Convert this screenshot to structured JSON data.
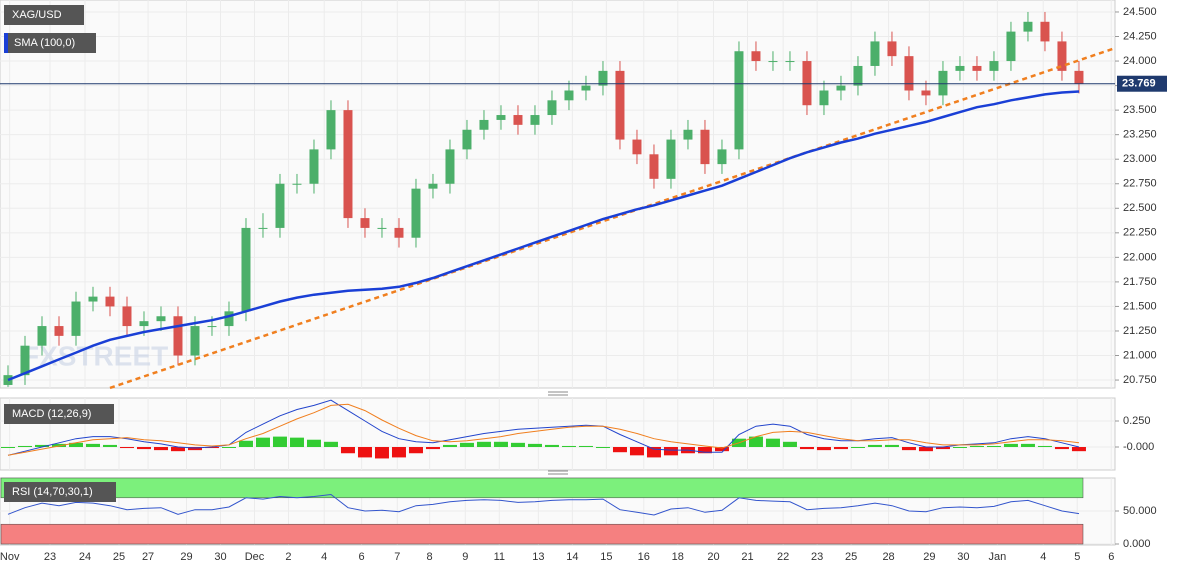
{
  "chart_data": [
    {
      "type": "candlestick",
      "title": "XAG/USD",
      "watermark": "FXSTREET",
      "up_color": "#4caf6a",
      "down_color": "#d9534f",
      "open": [
        20.7,
        20.8,
        21.1,
        21.3,
        21.2,
        21.55,
        21.6,
        21.5,
        21.3,
        21.35,
        21.4,
        21.0,
        21.3,
        21.3,
        21.45,
        22.3,
        22.3,
        22.75,
        22.75,
        23.1,
        23.5,
        22.4,
        22.3,
        22.3,
        22.2,
        22.7,
        22.75,
        23.1,
        23.3,
        23.4,
        23.45,
        23.35,
        23.45,
        23.6,
        23.7,
        23.75,
        23.9,
        23.2,
        23.05,
        22.8,
        23.2,
        23.3,
        22.95,
        23.1,
        24.1,
        24.0,
        24.0,
        24.0,
        23.55,
        23.7,
        23.75,
        23.95,
        24.2,
        24.05,
        23.7,
        23.65,
        23.9,
        23.95,
        23.9,
        24.0,
        24.3,
        24.4,
        24.2,
        23.9
      ],
      "high": [
        20.9,
        21.2,
        21.4,
        21.4,
        21.65,
        21.7,
        21.7,
        21.6,
        21.45,
        21.5,
        21.5,
        21.4,
        21.4,
        21.55,
        22.4,
        22.45,
        22.85,
        22.85,
        23.2,
        23.6,
        23.6,
        22.5,
        22.4,
        22.4,
        22.8,
        22.85,
        23.2,
        23.4,
        23.5,
        23.55,
        23.55,
        23.55,
        23.7,
        23.8,
        23.85,
        24.0,
        24.0,
        23.3,
        23.15,
        23.3,
        23.4,
        23.4,
        23.2,
        24.2,
        24.2,
        24.1,
        24.1,
        24.1,
        23.8,
        23.85,
        24.05,
        24.3,
        24.3,
        24.15,
        23.8,
        24.0,
        24.05,
        24.05,
        24.1,
        24.4,
        24.5,
        24.5,
        24.3,
        24.0
      ],
      "low": [
        20.68,
        20.7,
        21.0,
        21.1,
        21.1,
        21.45,
        21.4,
        21.2,
        21.2,
        21.25,
        20.9,
        20.9,
        21.2,
        21.2,
        21.35,
        22.2,
        22.2,
        22.65,
        22.65,
        23.0,
        22.3,
        22.2,
        22.2,
        22.1,
        22.1,
        22.6,
        22.65,
        23.0,
        23.2,
        23.3,
        23.25,
        23.25,
        23.35,
        23.5,
        23.6,
        23.65,
        23.1,
        22.95,
        22.7,
        22.7,
        23.1,
        22.85,
        22.85,
        23.0,
        23.9,
        23.9,
        23.9,
        23.45,
        23.45,
        23.6,
        23.65,
        23.85,
        23.95,
        23.6,
        23.55,
        23.55,
        23.8,
        23.8,
        23.8,
        23.9,
        24.2,
        24.1,
        23.8,
        23.67
      ],
      "close": [
        20.8,
        21.1,
        21.3,
        21.2,
        21.55,
        21.6,
        21.5,
        21.3,
        21.35,
        21.4,
        21.0,
        21.3,
        21.3,
        21.45,
        22.3,
        22.3,
        22.75,
        22.75,
        23.1,
        23.5,
        22.4,
        22.3,
        22.3,
        22.2,
        22.7,
        22.75,
        23.1,
        23.3,
        23.4,
        23.45,
        23.35,
        23.45,
        23.6,
        23.7,
        23.75,
        23.9,
        23.2,
        23.05,
        22.8,
        23.2,
        23.3,
        22.95,
        23.1,
        24.1,
        24.0,
        24.0,
        24.0,
        23.55,
        23.7,
        23.75,
        23.95,
        24.2,
        24.05,
        23.7,
        23.65,
        23.9,
        23.95,
        23.9,
        24.0,
        24.3,
        24.4,
        24.2,
        23.9,
        23.77
      ],
      "sma": {
        "name": "SMA (100,0)",
        "color": "#1a3fd6",
        "values": [
          20.75,
          20.82,
          20.89,
          20.96,
          21.03,
          21.1,
          21.16,
          21.2,
          21.24,
          21.27,
          21.3,
          21.33,
          21.36,
          21.4,
          21.45,
          21.5,
          21.55,
          21.59,
          21.62,
          21.64,
          21.66,
          21.67,
          21.68,
          21.7,
          21.74,
          21.79,
          21.85,
          21.91,
          21.97,
          22.03,
          22.09,
          22.15,
          22.21,
          22.27,
          22.33,
          22.39,
          22.44,
          22.49,
          22.53,
          22.58,
          22.63,
          22.68,
          22.73,
          22.8,
          22.87,
          22.94,
          23.01,
          23.07,
          23.12,
          23.17,
          23.21,
          23.26,
          23.3,
          23.34,
          23.38,
          23.43,
          23.48,
          23.53,
          23.56,
          23.6,
          23.63,
          23.66,
          23.68,
          23.69
        ]
      },
      "trendline": {
        "x": [
          6,
          65.1
        ],
        "y": [
          20.67,
          24.13
        ],
        "color": "#f07f1f"
      },
      "last_price": {
        "value": 23.769,
        "label": "23.769",
        "color": "#1f3a6e"
      },
      "ylim": [
        20.669,
        24.622
      ],
      "yticks": [
        {
          "value": 20.75,
          "label": "20.750"
        },
        {
          "value": 21.0,
          "label": "21.000"
        },
        {
          "value": 21.25,
          "label": "21.250"
        },
        {
          "value": 21.5,
          "label": "21.500"
        },
        {
          "value": 21.75,
          "label": "21.750"
        },
        {
          "value": 22.0,
          "label": "22.000"
        },
        {
          "value": 22.25,
          "label": "22.250"
        },
        {
          "value": 22.5,
          "label": "22.500"
        },
        {
          "value": 22.75,
          "label": "22.750"
        },
        {
          "value": 23.0,
          "label": "23.000"
        },
        {
          "value": 23.25,
          "label": "23.250"
        },
        {
          "value": 23.5,
          "label": "23.500"
        },
        {
          "value": 23.75,
          "label": "23.750"
        },
        {
          "value": 24.0,
          "label": "24.000"
        },
        {
          "value": 24.25,
          "label": "24.250"
        },
        {
          "value": 24.5,
          "label": "24.500"
        }
      ],
      "xlim": [
        -0.47,
        65.12
      ],
      "xticks": [
        {
          "value": 0.1,
          "label": "Nov"
        },
        {
          "value": 2.47,
          "label": "23"
        },
        {
          "value": 4.53,
          "label": "24"
        },
        {
          "value": 6.53,
          "label": "25"
        },
        {
          "value": 8.24,
          "label": "27"
        },
        {
          "value": 10.5,
          "label": "29"
        },
        {
          "value": 12.5,
          "label": "30"
        },
        {
          "value": 14.5,
          "label": "Dec"
        },
        {
          "value": 16.5,
          "label": "2"
        },
        {
          "value": 18.6,
          "label": "4"
        },
        {
          "value": 20.8,
          "label": "6"
        },
        {
          "value": 22.9,
          "label": "7"
        },
        {
          "value": 24.8,
          "label": "8"
        },
        {
          "value": 26.9,
          "label": "9"
        },
        {
          "value": 28.9,
          "label": "11"
        },
        {
          "value": 31.2,
          "label": "13"
        },
        {
          "value": 33.2,
          "label": "14"
        },
        {
          "value": 35.2,
          "label": "15"
        },
        {
          "value": 37.4,
          "label": "16"
        },
        {
          "value": 39.4,
          "label": "18"
        },
        {
          "value": 41.5,
          "label": "20"
        },
        {
          "value": 43.5,
          "label": "21"
        },
        {
          "value": 45.6,
          "label": "22"
        },
        {
          "value": 47.6,
          "label": "23"
        },
        {
          "value": 49.6,
          "label": "25"
        },
        {
          "value": 51.8,
          "label": "28"
        },
        {
          "value": 54.2,
          "label": "29"
        },
        {
          "value": 56.2,
          "label": "30"
        },
        {
          "value": 58.2,
          "label": "Jan"
        },
        {
          "value": 60.9,
          "label": "4"
        },
        {
          "value": 62.9,
          "label": "5"
        },
        {
          "value": 64.9,
          "label": "6"
        }
      ]
    },
    {
      "type": "macd",
      "title": "MACD (12,26,9)",
      "histogram": [
        0.0,
        0.01,
        0.02,
        0.03,
        0.04,
        0.03,
        0.02,
        -0.01,
        -0.02,
        -0.03,
        -0.04,
        -0.03,
        -0.01,
        0.0,
        0.06,
        0.09,
        0.1,
        0.09,
        0.07,
        0.05,
        -0.06,
        -0.1,
        -0.11,
        -0.1,
        -0.06,
        -0.02,
        0.02,
        0.04,
        0.05,
        0.05,
        0.04,
        0.03,
        0.02,
        0.01,
        0.01,
        0.0,
        -0.05,
        -0.08,
        -0.1,
        -0.08,
        -0.06,
        -0.06,
        -0.04,
        0.08,
        0.1,
        0.08,
        0.05,
        -0.02,
        -0.03,
        -0.02,
        0.0,
        0.02,
        0.02,
        -0.03,
        -0.04,
        -0.02,
        0.0,
        0.01,
        0.01,
        0.03,
        0.03,
        0.01,
        -0.02,
        -0.04
      ],
      "up_color": "#33cc33",
      "down_color": "#ee1111",
      "series": [
        {
          "color": "#2244cc",
          "values": [
            -0.08,
            -0.04,
            0.0,
            0.04,
            0.08,
            0.1,
            0.1,
            0.08,
            0.05,
            0.03,
            0.0,
            -0.01,
            0.0,
            0.02,
            0.14,
            0.22,
            0.3,
            0.36,
            0.4,
            0.45,
            0.35,
            0.25,
            0.15,
            0.08,
            0.05,
            0.04,
            0.07,
            0.1,
            0.13,
            0.15,
            0.17,
            0.18,
            0.19,
            0.2,
            0.21,
            0.2,
            0.12,
            0.05,
            -0.02,
            -0.03,
            -0.03,
            -0.05,
            -0.05,
            0.12,
            0.2,
            0.22,
            0.2,
            0.12,
            0.08,
            0.06,
            0.06,
            0.08,
            0.09,
            0.04,
            0.0,
            0.0,
            0.02,
            0.03,
            0.04,
            0.08,
            0.1,
            0.08,
            0.04,
            0.0
          ]
        },
        {
          "color": "#f07f1f",
          "values": [
            -0.08,
            -0.05,
            -0.02,
            0.01,
            0.04,
            0.07,
            0.08,
            0.09,
            0.07,
            0.06,
            0.04,
            0.02,
            0.01,
            0.02,
            0.08,
            0.13,
            0.2,
            0.27,
            0.33,
            0.4,
            0.41,
            0.35,
            0.26,
            0.18,
            0.11,
            0.06,
            0.05,
            0.06,
            0.08,
            0.1,
            0.13,
            0.15,
            0.17,
            0.19,
            0.2,
            0.2,
            0.17,
            0.13,
            0.08,
            0.05,
            0.03,
            0.01,
            -0.01,
            0.04,
            0.1,
            0.14,
            0.15,
            0.14,
            0.11,
            0.08,
            0.06,
            0.06,
            0.07,
            0.07,
            0.04,
            0.02,
            0.02,
            0.02,
            0.03,
            0.05,
            0.07,
            0.07,
            0.06,
            0.04
          ]
        }
      ],
      "ylim": [
        -0.221,
        0.471
      ],
      "yticks": [
        {
          "value": 0.25,
          "label": "0.250"
        },
        {
          "value": 0,
          "label": "-0.000"
        }
      ]
    },
    {
      "type": "rsi",
      "title": "RSI (14,70,30,1)",
      "color": "#3355cc",
      "upper_band": [
        70,
        100
      ],
      "upper_color": "#7cf07c",
      "lower_band": [
        0,
        30
      ],
      "lower_color": "#f58080",
      "values": [
        45,
        55,
        62,
        58,
        63,
        62,
        58,
        52,
        54,
        55,
        45,
        52,
        52,
        56,
        70,
        68,
        72,
        70,
        72,
        75,
        55,
        50,
        51,
        49,
        58,
        60,
        64,
        66,
        67,
        66,
        63,
        64,
        66,
        67,
        67,
        68,
        52,
        48,
        44,
        53,
        55,
        48,
        51,
        70,
        66,
        65,
        64,
        52,
        54,
        55,
        58,
        62,
        58,
        50,
        49,
        55,
        56,
        55,
        57,
        64,
        66,
        58,
        50,
        46
      ],
      "ylim": [
        -1.5,
        100
      ],
      "yticks": [
        {
          "value": 50,
          "label": "50.000"
        },
        {
          "value": 0,
          "label": "0.000"
        }
      ]
    }
  ]
}
